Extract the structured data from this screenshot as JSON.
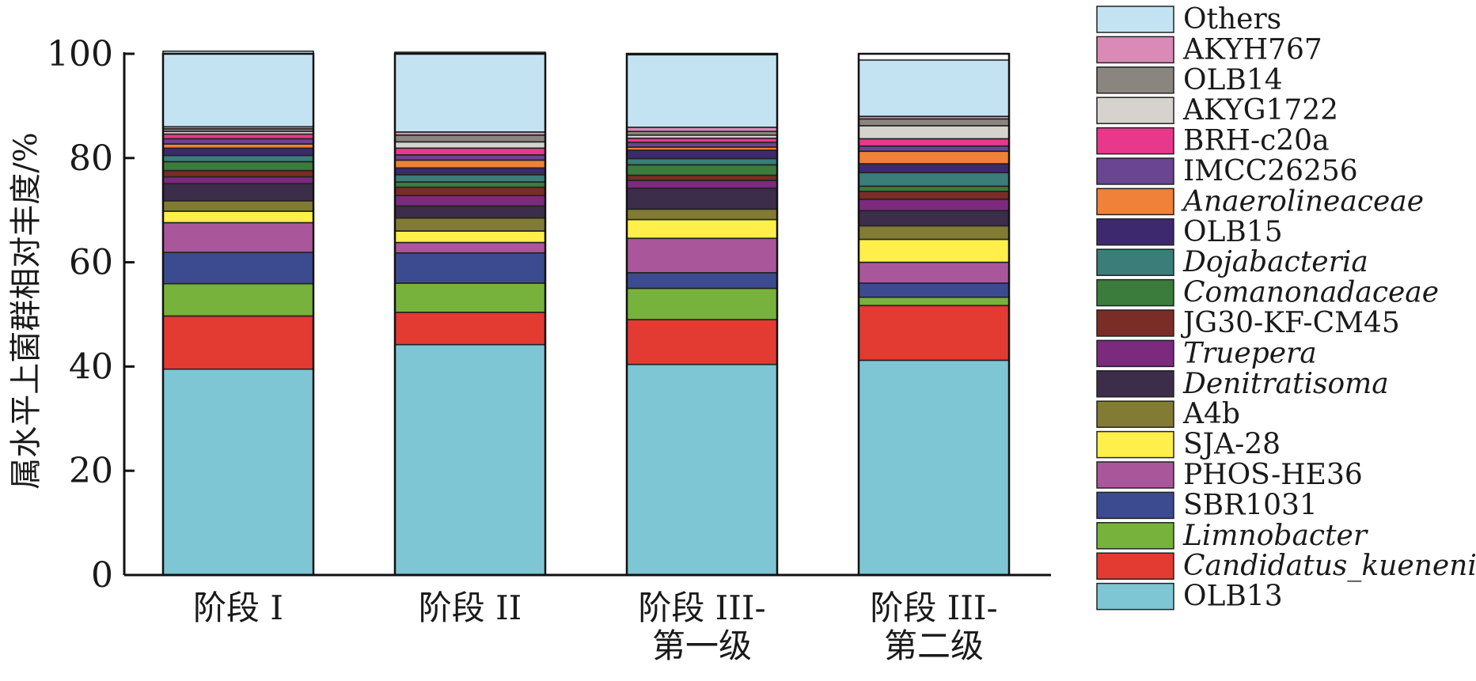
{
  "chart_data": {
    "type": "bar",
    "stacked": true,
    "ylabel": "属水平上菌群相对丰度/%",
    "xlabel": "",
    "ylim": [
      0,
      100
    ],
    "yticks": [
      0,
      20,
      40,
      60,
      80,
      100
    ],
    "legend_position": "right",
    "categories": [
      [
        "阶段 I"
      ],
      [
        "阶段 II"
      ],
      [
        "阶段 III-",
        "第一级"
      ],
      [
        "阶段 III-",
        "第二级"
      ]
    ],
    "series": [
      {
        "name": "OLB13",
        "italic": false,
        "color": "#7fc6d4",
        "values": [
          39.5,
          44.2,
          40.4,
          41.2
        ]
      },
      {
        "name": "Candidatus_kuenenia",
        "italic": true,
        "color": "#e33a31",
        "values": [
          10.2,
          6.2,
          8.6,
          10.5
        ]
      },
      {
        "name": "Limnobacter",
        "italic": true,
        "color": "#77b23d",
        "values": [
          6.2,
          5.6,
          6.0,
          1.6
        ]
      },
      {
        "name": "SBR1031",
        "italic": false,
        "color": "#3c4a8f",
        "values": [
          6.0,
          5.8,
          3.0,
          2.7
        ]
      },
      {
        "name": "PHOS-HE36",
        "italic": false,
        "color": "#a9579a",
        "values": [
          5.7,
          2.0,
          6.6,
          4.0
        ]
      },
      {
        "name": "SJA-28",
        "italic": false,
        "color": "#ffef4a",
        "values": [
          2.2,
          2.2,
          3.6,
          4.4
        ]
      },
      {
        "name": "A4b",
        "italic": false,
        "color": "#827b33",
        "values": [
          2.0,
          2.5,
          2.0,
          2.6
        ]
      },
      {
        "name": "Denitratisoma",
        "italic": true,
        "color": "#3c2d4a",
        "values": [
          3.3,
          2.3,
          4.0,
          2.9
        ]
      },
      {
        "name": "Truepera",
        "italic": true,
        "color": "#7b2a7d",
        "values": [
          1.3,
          2.0,
          1.5,
          2.2
        ]
      },
      {
        "name": "JG30-KF-CM45",
        "italic": false,
        "color": "#7a2c26",
        "values": [
          1.2,
          1.6,
          1.0,
          1.5
        ]
      },
      {
        "name": "Comanonadaceae",
        "italic": true,
        "color": "#3b7c3c",
        "values": [
          1.7,
          1.0,
          2.0,
          1.0
        ]
      },
      {
        "name": "Dojabacteria",
        "italic": true,
        "color": "#3a7d79",
        "values": [
          1.2,
          1.4,
          1.2,
          2.6
        ]
      },
      {
        "name": "OLB15",
        "italic": false,
        "color": "#3d2a6e",
        "values": [
          1.4,
          1.3,
          1.6,
          1.7
        ]
      },
      {
        "name": "Anaerolineaceae",
        "italic": true,
        "color": "#f08138",
        "values": [
          0.8,
          1.5,
          0.6,
          2.4
        ]
      },
      {
        "name": "IMCC26256",
        "italic": false,
        "color": "#6a4592",
        "values": [
          1.0,
          1.0,
          0.9,
          1.0
        ]
      },
      {
        "name": "BRH-c20a",
        "italic": false,
        "color": "#e8388c",
        "values": [
          0.9,
          1.3,
          0.8,
          1.4
        ]
      },
      {
        "name": "AKYG1722",
        "italic": false,
        "color": "#d6d3cf",
        "values": [
          0.5,
          1.2,
          0.6,
          2.5
        ]
      },
      {
        "name": "OLB14",
        "italic": false,
        "color": "#8b8580",
        "values": [
          0.5,
          1.3,
          0.7,
          1.3
        ]
      },
      {
        "name": "AKYH767",
        "italic": false,
        "color": "#da8ab6",
        "values": [
          0.4,
          0.6,
          0.8,
          0.5
        ]
      },
      {
        "name": "Others",
        "italic": false,
        "color": "#c4e3f2",
        "values": [
          14.5,
          15.3,
          13.9,
          10.8
        ]
      }
    ],
    "legend_order": [
      "Others",
      "AKYH767",
      "OLB14",
      "AKYG1722",
      "BRH-c20a",
      "IMCC26256",
      "Anaerolineaceae",
      "OLB15",
      "Dojabacteria",
      "Comanonadaceae",
      "JG30-KF-CM45",
      "Truepera",
      "Denitratisoma",
      "A4b",
      "SJA-28",
      "PHOS-HE36",
      "SBR1031",
      "Limnobacter",
      "Candidatus_kuenenia",
      "OLB13"
    ]
  }
}
